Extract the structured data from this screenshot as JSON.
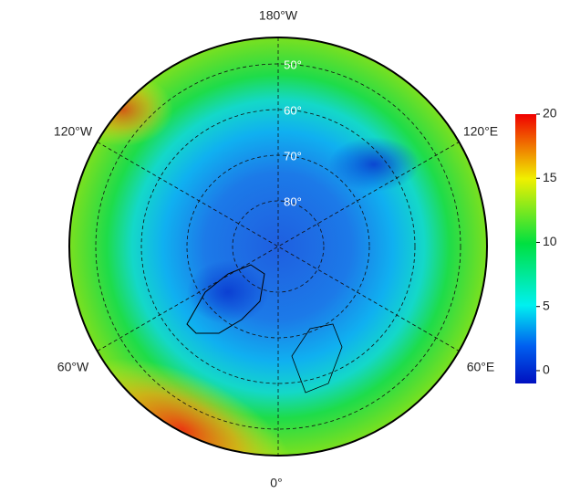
{
  "map": {
    "longitude_labels": {
      "top": "180°W",
      "bottom": "0°",
      "upper_right": "120°E",
      "lower_right": "60°E",
      "upper_left": "120°W",
      "lower_left": "60°W"
    },
    "latitude_labels": [
      "50°",
      "60°",
      "70°",
      "80°"
    ]
  },
  "colorbar": {
    "lim": [
      -1,
      20
    ],
    "ticks": [
      0,
      5,
      10,
      15,
      20
    ]
  }
}
